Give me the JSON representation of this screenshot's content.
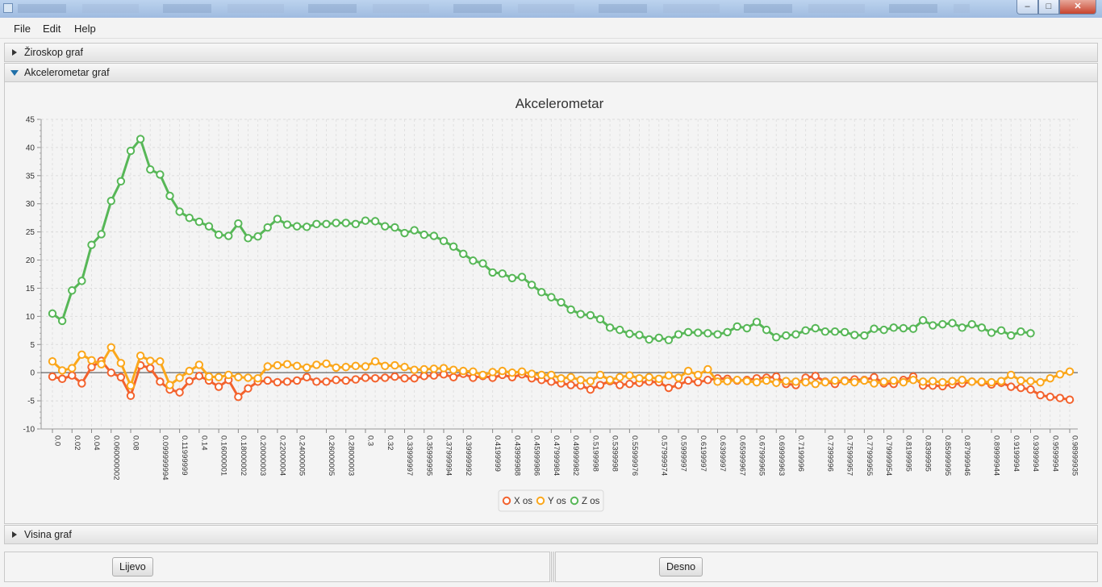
{
  "window": {
    "min_glyph": "–",
    "max_glyph": "□",
    "close_glyph": "✕"
  },
  "menu": {
    "file": "File",
    "edit": "Edit",
    "help": "Help"
  },
  "panes": {
    "gyro": "Žiroskop graf",
    "accel": "Akcelerometar graf",
    "height": "Visina graf"
  },
  "buttons": {
    "left": "Lijevo",
    "right": "Desno"
  },
  "colors": {
    "x": "#f3622d",
    "y": "#fba71b",
    "z": "#57b757",
    "accent": "#1f6fa8"
  },
  "chart_data": {
    "type": "line",
    "title": "Akcelerometar",
    "xlabel": "",
    "ylabel": "",
    "ylim": [
      -10,
      45
    ],
    "yticks": [
      -10,
      -5,
      0,
      5,
      10,
      15,
      20,
      25,
      30,
      35,
      40,
      45
    ],
    "grid": true,
    "legend": "bottom-center",
    "x_tick_labels": [
      "0.0",
      "0.02",
      "0.04",
      "0.060000002",
      "0.08",
      "0.099999994",
      "0.11999999",
      "0.14",
      "0.16000001",
      "0.18000002",
      "0.20000003",
      "0.22000004",
      "0.24000005",
      "0.26000005",
      "0.28000003",
      "0.3",
      "0.32",
      "0.33999997",
      "0.35999995",
      "0.37999994",
      "0.39999992",
      "0.4199999",
      "0.43999988",
      "0.45999986",
      "0.47999984",
      "0.49999982",
      "0.5199998",
      "0.5399998",
      "0.55999976",
      "0.57999974",
      "0.5999997",
      "0.6199997",
      "0.6399997",
      "0.65999967",
      "0.67999965",
      "0.69999963",
      "0.7199996",
      "0.7399996",
      "0.75999957",
      "0.77999955",
      "0.79999954",
      "0.8199995",
      "0.8399995",
      "0.85999995",
      "0.87999946",
      "0.89999944",
      "0.9199994",
      "0.9399994",
      "0.9599994",
      "0.98999935"
    ],
    "series": [
      {
        "name": "X os",
        "color": "#f3622d",
        "values": [
          -0.7,
          -1.1,
          -0.5,
          -1.9,
          1.0,
          2.1,
          0.0,
          -0.8,
          -4.1,
          1.3,
          0.8,
          -1.6,
          -3.0,
          -3.5,
          -1.5,
          -0.6,
          -1.4,
          -2.5,
          -1.3,
          -4.3,
          -2.8,
          -1.6,
          -1.4,
          -1.7,
          -1.6,
          -1.4,
          -0.8,
          -1.6,
          -1.6,
          -1.3,
          -1.4,
          -1.2,
          -0.9,
          -1.0,
          -0.9,
          -0.7,
          -1.0,
          -1.0,
          -0.6,
          -0.5,
          -0.3,
          -0.8,
          -0.2,
          -0.9,
          -0.6,
          -0.9,
          -0.4,
          -0.8,
          -0.3,
          -1.0,
          -1.3,
          -1.6,
          -1.9,
          -2.2,
          -2.3,
          -3.0,
          -2.2,
          -1.5,
          -2.2,
          -2.0,
          -1.8,
          -1.6,
          -1.7,
          -2.7,
          -2.2,
          -1.4,
          -1.7,
          -1.3,
          -1.0,
          -1.1,
          -1.4,
          -1.3,
          -1.0,
          -0.9,
          -0.7,
          -2.0,
          -2.2,
          -0.9,
          -0.6,
          -1.6,
          -2.0,
          -1.4,
          -1.2,
          -1.3,
          -0.8,
          -1.9,
          -2.0,
          -1.3,
          -0.7,
          -2.3,
          -2.3,
          -2.4,
          -2.1,
          -1.9,
          -1.6,
          -1.7,
          -2.1,
          -1.8,
          -2.5,
          -2.7,
          -3.0,
          -4.0,
          -4.3,
          -4.5,
          -4.8
        ]
      },
      {
        "name": "Y os",
        "color": "#fba71b",
        "values": [
          2.0,
          0.4,
          0.8,
          3.2,
          2.2,
          1.5,
          4.5,
          1.7,
          -2.3,
          3.0,
          2.1,
          2.0,
          -2.2,
          -0.9,
          0.3,
          1.4,
          -0.7,
          -0.8,
          -0.4,
          -0.8,
          -0.9,
          -1.0,
          1.1,
          1.3,
          1.5,
          1.2,
          0.9,
          1.4,
          1.6,
          0.9,
          1.0,
          1.2,
          1.1,
          2.0,
          1.2,
          1.3,
          1.0,
          0.5,
          0.6,
          0.7,
          0.8,
          0.5,
          0.3,
          0.2,
          -0.4,
          0.1,
          0.3,
          0.0,
          0.2,
          -0.2,
          -0.4,
          -0.4,
          -1.0,
          -0.8,
          -1.3,
          -1.5,
          -0.4,
          -1.3,
          -0.8,
          -0.5,
          -1.0,
          -0.8,
          -1.1,
          -0.5,
          -0.9,
          0.3,
          -0.4,
          0.6,
          -1.6,
          -1.5,
          -1.3,
          -1.5,
          -1.7,
          -1.4,
          -1.8,
          -1.5,
          -1.6,
          -1.7,
          -2.0,
          -1.7,
          -1.4,
          -1.5,
          -1.7,
          -1.4,
          -1.9,
          -1.6,
          -1.4,
          -1.7,
          -1.3,
          -1.6,
          -1.5,
          -1.7,
          -1.5,
          -1.3,
          -1.6,
          -1.6,
          -1.7,
          -1.5,
          -0.4,
          -1.4,
          -1.5,
          -1.7,
          -1.0,
          -0.3,
          0.2
        ]
      },
      {
        "name": "Z os",
        "color": "#57b757",
        "values": [
          10.5,
          9.2,
          14.6,
          16.3,
          22.7,
          24.6,
          30.5,
          34.0,
          39.4,
          41.5,
          36.1,
          35.2,
          31.4,
          28.6,
          27.5,
          26.8,
          26.0,
          24.5,
          24.3,
          26.5,
          23.9,
          24.2,
          25.8,
          27.3,
          26.3,
          26.0,
          25.9,
          26.4,
          26.4,
          26.6,
          26.6,
          26.4,
          27.0,
          26.9,
          26.0,
          25.8,
          24.8,
          25.3,
          24.5,
          24.3,
          23.4,
          22.4,
          21.1,
          19.9,
          19.4,
          17.8,
          17.6,
          16.8,
          17.0,
          15.6,
          14.3,
          13.4,
          12.5,
          11.2,
          10.4,
          10.2,
          9.5,
          8.0,
          7.6,
          6.9,
          6.7,
          5.9,
          6.2,
          5.8,
          6.8,
          7.2,
          7.1,
          7.0,
          6.8,
          7.2,
          8.2,
          7.9,
          9.0,
          7.6,
          6.3,
          6.6,
          6.8,
          7.5,
          7.9,
          7.3,
          7.3,
          7.2,
          6.7,
          6.6,
          7.8,
          7.6,
          8.0,
          7.9,
          7.8,
          9.3,
          8.4,
          8.6,
          8.8,
          8.0,
          8.6,
          8.0,
          7.1,
          7.5,
          6.6,
          7.3,
          7.0
        ]
      }
    ]
  }
}
